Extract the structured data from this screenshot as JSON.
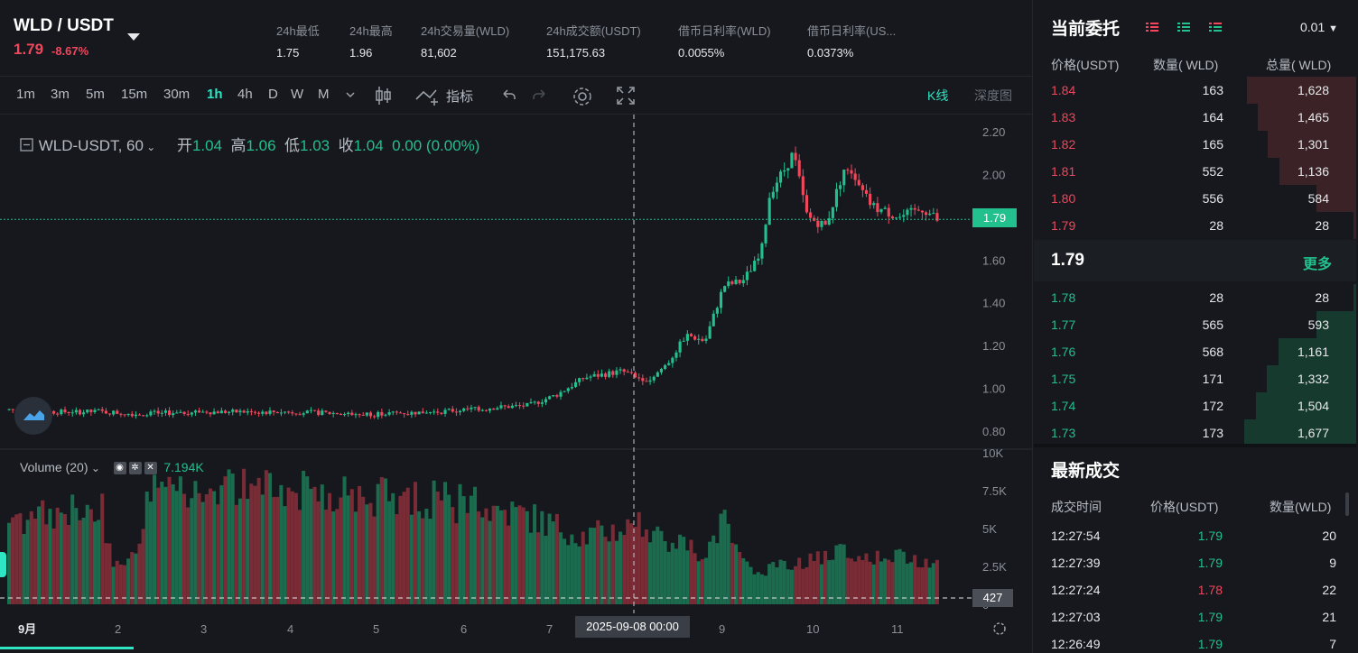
{
  "header": {
    "pair": "WLD / USDT",
    "price": "1.79",
    "change": "-8.67%",
    "stats": [
      {
        "label": "24h最低",
        "value": "1.75"
      },
      {
        "label": "24h最高",
        "value": "1.96"
      },
      {
        "label": "24h交易量(WLD)",
        "value": "81,602"
      },
      {
        "label": "24h成交额(USDT)",
        "value": "151,175.63"
      },
      {
        "label": "借币日利率(WLD)",
        "value": "0.0055%"
      },
      {
        "label": "借币日利率(US...",
        "value": "0.0373%"
      }
    ]
  },
  "toolbar": {
    "timeframes": [
      "1m",
      "3m",
      "5m",
      "15m",
      "30m",
      "1h",
      "4h",
      "D",
      "W",
      "M"
    ],
    "active_timeframe": "1h",
    "indicator_label": "指标",
    "kline_tab": "K线",
    "depth_tab": "深度图"
  },
  "legend": {
    "symbol": "WLD-USDT, 60",
    "open_label": "开",
    "open": "1.04",
    "high_label": "高",
    "high": "1.06",
    "low_label": "低",
    "low": "1.03",
    "close_label": "收",
    "close": "1.04",
    "change": "0.00 (0.00%)"
  },
  "volume_legend": {
    "label": "Volume (20)",
    "value": "7.194K"
  },
  "chart_data": {
    "type": "candlestick",
    "symbol": "WLD-USDT",
    "interval": "60",
    "x_ticks": [
      "9月",
      "2",
      "3",
      "4",
      "5",
      "6",
      "7",
      "8",
      "9",
      "10",
      "11"
    ],
    "price_ticks": [
      "2.20",
      "2.00",
      "1.80",
      "1.60",
      "1.40",
      "1.20",
      "1.00",
      "0.80"
    ],
    "ylim": [
      0.78,
      2.22
    ],
    "volume_ticks": [
      "10K",
      "7.5K",
      "5K",
      "2.5K",
      "0"
    ],
    "volume_ylim": [
      0,
      10000
    ],
    "close_anchors": [
      [
        0,
        0.9
      ],
      [
        0.05,
        0.89
      ],
      [
        0.1,
        0.89
      ],
      [
        0.14,
        0.88
      ],
      [
        0.2,
        0.89
      ],
      [
        0.3,
        0.89
      ],
      [
        0.38,
        0.88
      ],
      [
        0.46,
        0.89
      ],
      [
        0.52,
        0.91
      ],
      [
        0.56,
        0.92
      ],
      [
        0.59,
        0.97
      ],
      [
        0.62,
        1.05
      ],
      [
        0.66,
        1.08
      ],
      [
        0.68,
        1.05
      ],
      [
        0.69,
        1.04
      ],
      [
        0.71,
        1.12
      ],
      [
        0.73,
        1.25
      ],
      [
        0.75,
        1.22
      ],
      [
        0.77,
        1.48
      ],
      [
        0.79,
        1.5
      ],
      [
        0.81,
        1.62
      ],
      [
        0.82,
        1.92
      ],
      [
        0.835,
        2.02
      ],
      [
        0.845,
        2.1
      ],
      [
        0.86,
        1.8
      ],
      [
        0.88,
        1.76
      ],
      [
        0.9,
        2.03
      ],
      [
        0.93,
        1.85
      ],
      [
        0.96,
        1.8
      ],
      [
        0.985,
        1.84
      ],
      [
        1,
        1.79
      ]
    ],
    "volume_anchors": [
      [
        0,
        5500
      ],
      [
        0.1,
        6500
      ],
      [
        0.11,
        3000
      ],
      [
        0.14,
        3200
      ],
      [
        0.15,
        8000
      ],
      [
        0.3,
        7500
      ],
      [
        0.45,
        7000
      ],
      [
        0.55,
        6000
      ],
      [
        0.62,
        4500
      ],
      [
        0.68,
        5200
      ],
      [
        0.72,
        4000
      ],
      [
        0.75,
        3400
      ],
      [
        0.77,
        5500
      ],
      [
        0.79,
        2600
      ],
      [
        0.82,
        2300
      ],
      [
        0.9,
        3400
      ],
      [
        0.95,
        3200
      ],
      [
        1,
        2700
      ]
    ],
    "last_price": "1.79",
    "last_volume": "427",
    "crosshair_date": "2025-09-08   00:00",
    "colors": {
      "up": "#22c08c",
      "down": "#f0475c"
    }
  },
  "orderbook": {
    "title": "当前委托",
    "precision": "0.01",
    "headers": [
      "价格(USDT)",
      "数量( WLD)",
      "总量( WLD)"
    ],
    "asks": [
      {
        "price": "1.84",
        "qty": "163",
        "total": "1,628",
        "depth": 0.97
      },
      {
        "price": "1.83",
        "qty": "164",
        "total": "1,465",
        "depth": 0.87
      },
      {
        "price": "1.82",
        "qty": "165",
        "total": "1,301",
        "depth": 0.78
      },
      {
        "price": "1.81",
        "qty": "552",
        "total": "1,136",
        "depth": 0.68
      },
      {
        "price": "1.80",
        "qty": "556",
        "total": "584",
        "depth": 0.35
      },
      {
        "price": "1.79",
        "qty": "28",
        "total": "28",
        "depth": 0.02
      }
    ],
    "mid_price": "1.79",
    "more_label": "更多",
    "bids": [
      {
        "price": "1.78",
        "qty": "28",
        "total": "28",
        "depth": 0.02
      },
      {
        "price": "1.77",
        "qty": "565",
        "total": "593",
        "depth": 0.35
      },
      {
        "price": "1.76",
        "qty": "568",
        "total": "1,161",
        "depth": 0.69
      },
      {
        "price": "1.75",
        "qty": "171",
        "total": "1,332",
        "depth": 0.79
      },
      {
        "price": "1.74",
        "qty": "172",
        "total": "1,504",
        "depth": 0.89
      },
      {
        "price": "1.73",
        "qty": "173",
        "total": "1,677",
        "depth": 0.99
      }
    ]
  },
  "trades": {
    "title": "最新成交",
    "headers": [
      "成交时间",
      "价格(USDT)",
      "数量(WLD)"
    ],
    "rows": [
      {
        "time": "12:27:54",
        "price": "1.79",
        "amount": "20",
        "side": "up"
      },
      {
        "time": "12:27:39",
        "price": "1.79",
        "amount": "9",
        "side": "up"
      },
      {
        "time": "12:27:24",
        "price": "1.78",
        "amount": "22",
        "side": "dn"
      },
      {
        "time": "12:27:03",
        "price": "1.79",
        "amount": "21",
        "side": "up"
      },
      {
        "time": "12:26:49",
        "price": "1.79",
        "amount": "7",
        "side": "up"
      }
    ]
  }
}
